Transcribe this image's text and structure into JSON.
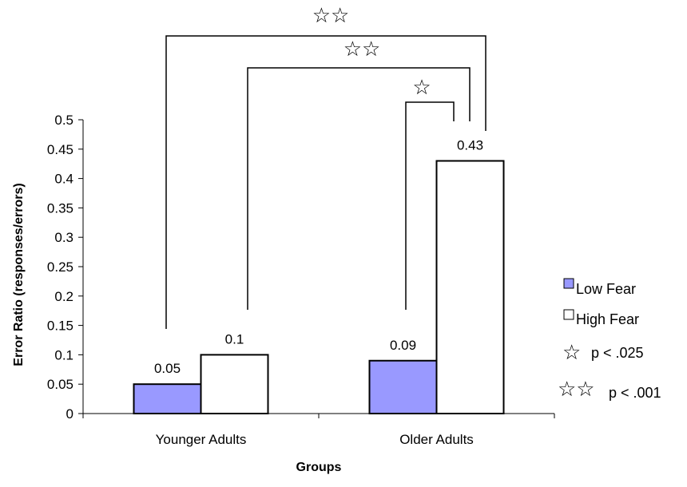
{
  "chart_data": {
    "type": "bar",
    "categories": [
      "Younger Adults",
      "Older Adults"
    ],
    "series": [
      {
        "name": "Low Fear",
        "values": [
          0.05,
          0.09
        ],
        "color": "#9999ff"
      },
      {
        "name": "High Fear",
        "values": [
          0.1,
          0.43
        ],
        "color": "#ffffff"
      }
    ],
    "data_labels": [
      [
        "0.05",
        "0.09"
      ],
      [
        "0.1",
        "0.43"
      ]
    ],
    "xlabel": "Groups",
    "ylabel": "Error Ratio (responses/errors)",
    "ylim": [
      0,
      0.5
    ],
    "yticks": [
      "0",
      "0.05",
      "0.1",
      "0.15",
      "0.2",
      "0.25",
      "0.3",
      "0.35",
      "0.4",
      "0.45",
      "0.5"
    ],
    "grid": false,
    "legend": {
      "position": "right",
      "significance": [
        {
          "symbol": "☆",
          "label": "p < .025"
        },
        {
          "symbol": "☆☆",
          "label": "p < .001"
        }
      ]
    },
    "significance_brackets": [
      {
        "from": "Younger Adults Low Fear",
        "to": "Older Adults High Fear",
        "symbol": "☆☆"
      },
      {
        "from": "Younger Adults High Fear",
        "to": "Older Adults High Fear",
        "symbol": "☆☆"
      },
      {
        "from": "Older Adults Low Fear",
        "to": "Older Adults High Fear",
        "symbol": "☆"
      }
    ]
  }
}
